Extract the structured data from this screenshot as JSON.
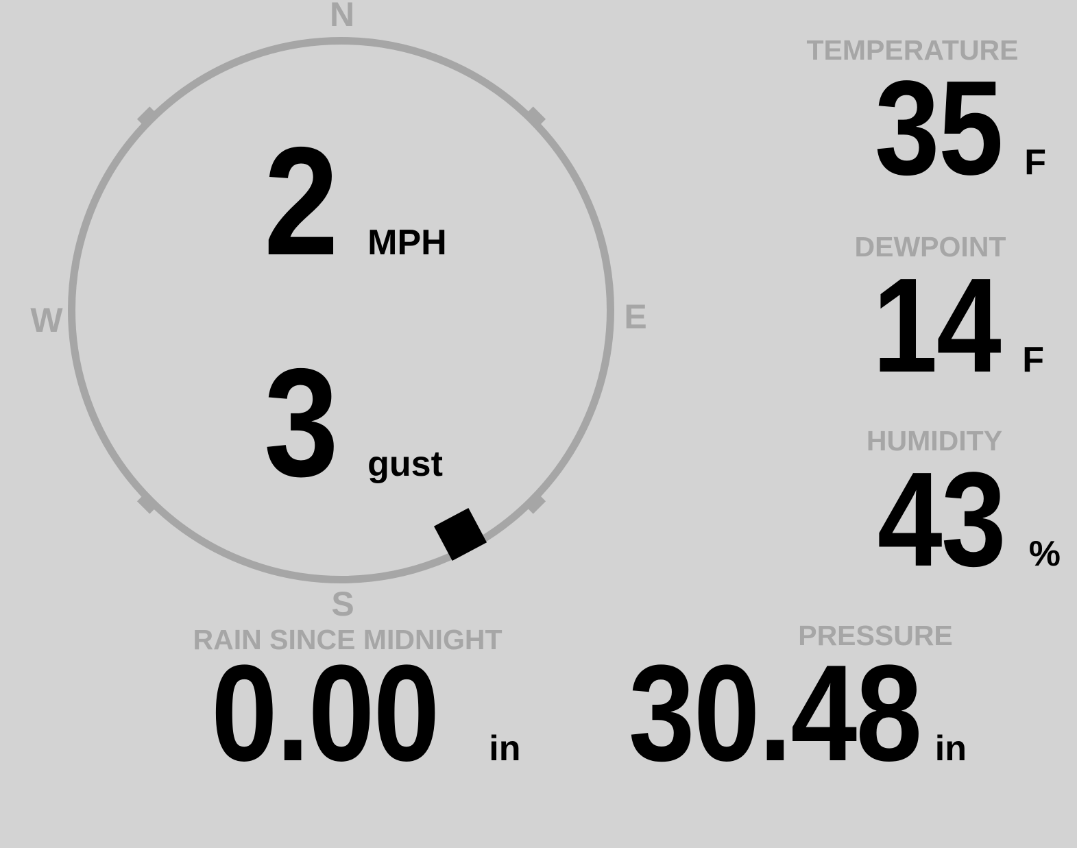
{
  "theme": {
    "background": "#d3d3d3",
    "muted_gray": "#a6a6a6",
    "text_black": "#000000"
  },
  "compass": {
    "cardinals": {
      "north": "N",
      "east": "E",
      "south": "S",
      "west": "W"
    },
    "wind": {
      "speed": "2",
      "speed_unit": "MPH",
      "gust": "3",
      "gust_unit": "gust",
      "direction_deg": 152
    }
  },
  "metrics": {
    "temperature": {
      "label": "TEMPERATURE",
      "value": "35",
      "unit": "F"
    },
    "dewpoint": {
      "label": "DEWPOINT",
      "value": "14",
      "unit": "F"
    },
    "humidity": {
      "label": "HUMIDITY",
      "value": "43",
      "unit": "%"
    },
    "rain_since_midnight": {
      "label": "RAIN SINCE MIDNIGHT",
      "value": "0.00",
      "unit": "in"
    },
    "pressure": {
      "label": "PRESSURE",
      "value": "30.48",
      "unit": "in"
    }
  }
}
